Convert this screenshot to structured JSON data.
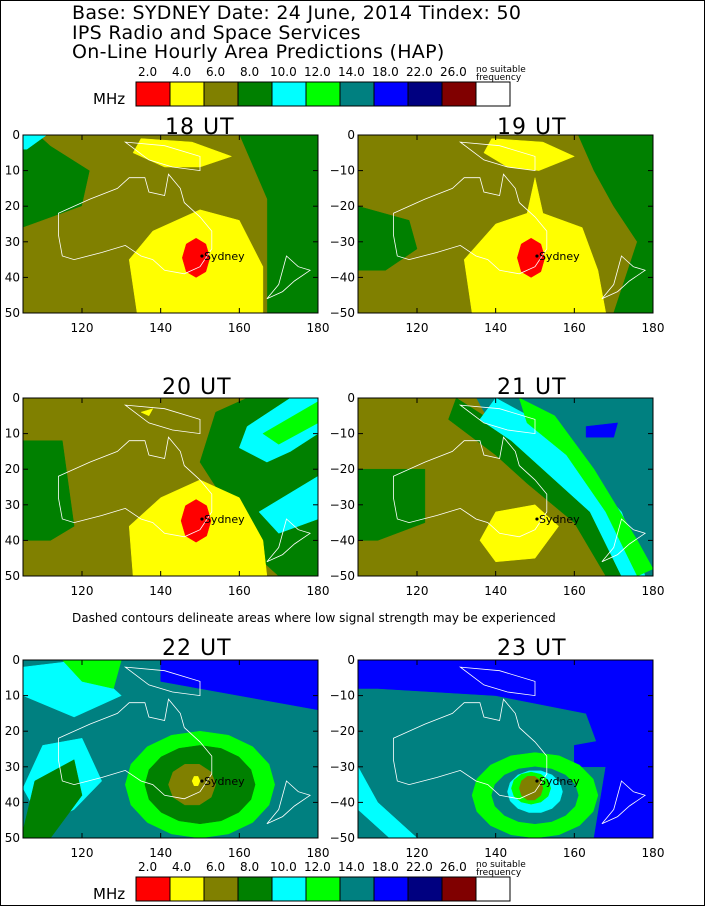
{
  "header": {
    "line1": "Base: SYDNEY Date: 24 June, 2014 Tindex: 50",
    "line2": "IPS Radio and Space Services",
    "line3": "On-Line Hourly Area Predictions (HAP)"
  },
  "legend": {
    "unit": "MHz",
    "ticks": [
      "2.0",
      "4.0",
      "6.0",
      "8.0",
      "10.0",
      "12.0",
      "14.0",
      "18.0",
      "22.0",
      "26.0"
    ],
    "no_freq_line1": "no suitable",
    "no_freq_line2": "frequency",
    "colors": [
      "#ff0000",
      "#ffff00",
      "#808000",
      "#008000",
      "#00ffff",
      "#00ff00",
      "#008080",
      "#0000ff",
      "#000080",
      "#800000",
      "#ffffff"
    ]
  },
  "note": "Dashed contours delineate areas where low signal strength may be experienced",
  "city_label": "Sydney",
  "panels": [
    {
      "title": "18 UT",
      "xticks": [
        "120",
        "140",
        "160",
        "180"
      ],
      "yticks": [
        "0",
        "10",
        "20",
        "30",
        "40",
        "50"
      ]
    },
    {
      "title": "19 UT",
      "xticks": [
        "120",
        "140",
        "160",
        "180"
      ],
      "yticks": [
        "0",
        "−10",
        "−20",
        "−30",
        "−40",
        "−50"
      ]
    },
    {
      "title": "20 UT",
      "xticks": [
        "120",
        "140",
        "160",
        "180"
      ],
      "yticks": [
        "0",
        "10",
        "20",
        "30",
        "40",
        "50"
      ]
    },
    {
      "title": "21 UT",
      "xticks": [
        "120",
        "140",
        "160",
        "180"
      ],
      "yticks": [
        "0",
        "−10",
        "−20",
        "−30",
        "−40",
        "−50"
      ]
    },
    {
      "title": "22 UT",
      "xticks": [
        "120",
        "140",
        "160",
        "180"
      ],
      "yticks": [
        "0",
        "10",
        "20",
        "30",
        "40",
        "50"
      ]
    },
    {
      "title": "23 UT",
      "xticks": [
        "120",
        "140",
        "160",
        "180"
      ],
      "yticks": [
        "0",
        "−10",
        "−20",
        "−30",
        "−40",
        "−50"
      ]
    }
  ]
}
